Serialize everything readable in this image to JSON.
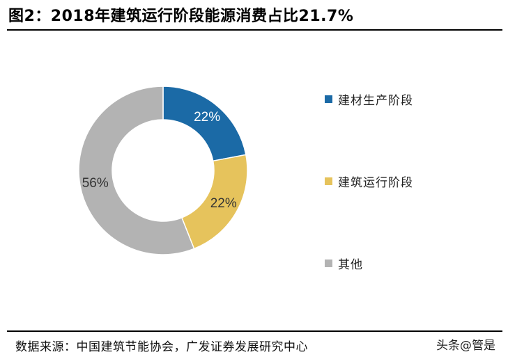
{
  "title": "图2：2018年建筑运行阶段能源消费占比21.7%",
  "source": "数据来源：中国建筑节能协会，广发证券发展研究中心",
  "watermark": "头条@管是",
  "chart_data": {
    "type": "pie",
    "style": "donut",
    "title": "图2：2018年建筑运行阶段能源消费占比21.7%",
    "categories": [
      "建材生产阶段",
      "建筑运行阶段",
      "其他"
    ],
    "values": [
      22,
      22,
      56
    ],
    "labels": [
      "22%",
      "22%",
      "56%"
    ],
    "colors": [
      "#1b6aa6",
      "#e6c35c",
      "#b3b3b3"
    ],
    "start_angle_deg": 0,
    "direction": "clockwise",
    "legend_position": "right"
  }
}
